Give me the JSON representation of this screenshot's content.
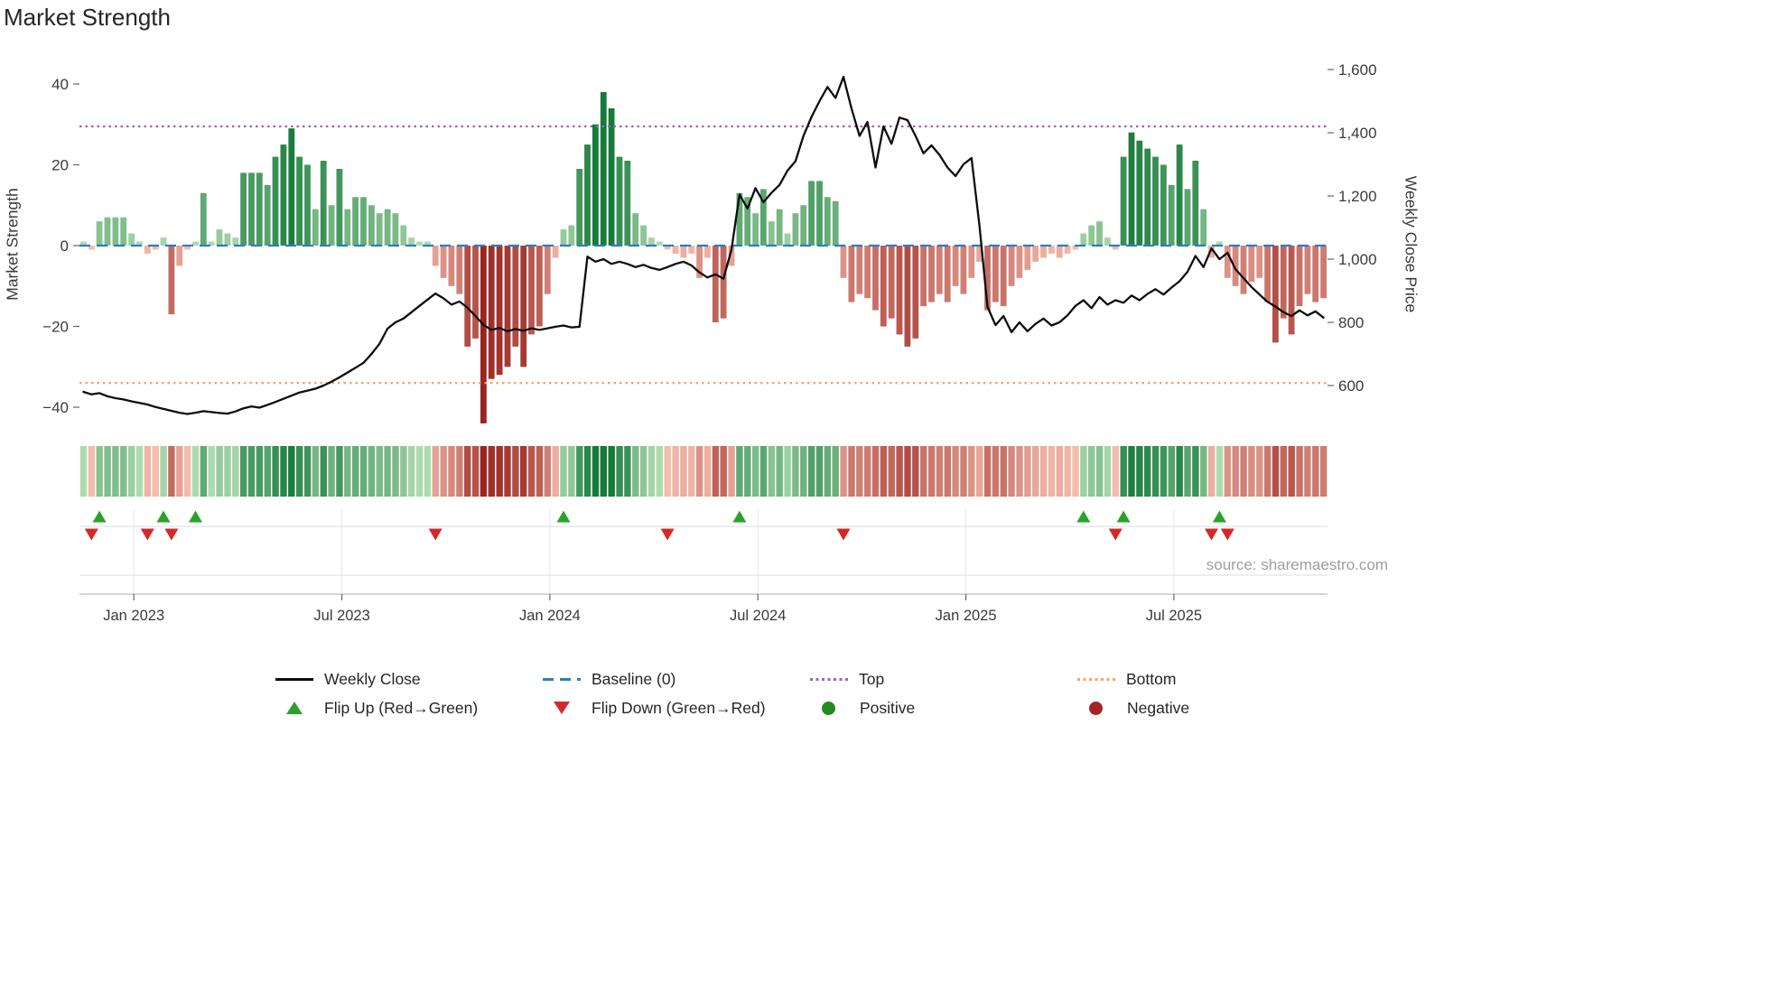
{
  "source_text": "source: sharemaestro.com",
  "colors": {
    "bar_pos_light": "#bee4bb",
    "bar_pos_dark": "#167a3a",
    "bar_neg_light": "#fac7b7",
    "bar_neg_dark": "#992522",
    "price_line": "#0d0d0d",
    "baseline": "#2e7ebb",
    "top_line": "#9467bd",
    "bottom_line": "#f5a45d",
    "flip_up": "#2ca02c",
    "flip_down": "#d62728",
    "positive_dot": "#228b22",
    "negative_dot": "#a32424",
    "grid": "#dcdcdc",
    "axis_line": "#bdbdbd",
    "tick_mark": "#666666"
  },
  "legend": {
    "rows": [
      [
        {
          "name": "weekly-close",
          "label": "Weekly Close",
          "marker": "line",
          "color": "#0d0d0d"
        },
        {
          "name": "baseline",
          "label": "Baseline (0)",
          "marker": "dashed",
          "color": "#2e7ebb"
        },
        {
          "name": "top",
          "label": "Top",
          "marker": "dotted",
          "color": "#9467bd"
        },
        {
          "name": "bottom",
          "label": "Bottom",
          "marker": "dotted",
          "color": "#f5a45d"
        }
      ],
      [
        {
          "name": "flip-up",
          "label": "Flip Up (Red→Green)",
          "marker": "tri-up",
          "color": "#2ca02c"
        },
        {
          "name": "flip-down",
          "label": "Flip Down (Green→Red)",
          "marker": "tri-down",
          "color": "#d62728"
        },
        {
          "name": "positive",
          "label": "Positive",
          "marker": "dot",
          "color": "#228b22"
        },
        {
          "name": "negative",
          "label": "Negative",
          "marker": "dot",
          "color": "#a32424"
        }
      ]
    ]
  },
  "chart_data": {
    "type": "composite",
    "title": "Market Strength",
    "x_unit": "week",
    "weeks": 156,
    "x_ticks": {
      "labels": [
        "Jan 2023",
        "Jul 2023",
        "Jan 2024",
        "Jul 2024",
        "Jan 2025",
        "Jul 2025"
      ],
      "week_positions": [
        6.3,
        32.3,
        58.3,
        84.3,
        110.3,
        136.3
      ]
    },
    "left_axis": {
      "label": "Market Strength",
      "ticks": [
        40,
        20,
        0,
        -20,
        -40
      ],
      "tick_labels": [
        "40",
        "20",
        "0",
        "−20",
        "−40"
      ],
      "range": [
        -47,
        47
      ]
    },
    "right_axis": {
      "label": "Weekly Close Price",
      "ticks": [
        1600,
        1400,
        1200,
        1000,
        800,
        600
      ],
      "tick_labels": [
        "1,600",
        "1,400",
        "1,200",
        "1,000",
        "800",
        "600"
      ],
      "range": [
        480,
        1650
      ]
    },
    "baseline": 0,
    "top_level": 29.5,
    "bottom_level": -34,
    "series": [
      {
        "name": "Market Strength",
        "type": "bar",
        "axis": "left",
        "values": [
          1,
          -1,
          6,
          7,
          7,
          7,
          3,
          1,
          -2,
          -1,
          2,
          -17,
          -5,
          -1,
          1,
          13,
          1,
          4,
          3,
          2,
          18,
          18,
          18,
          15,
          22,
          25,
          29,
          22,
          20,
          9,
          21,
          10,
          19,
          9,
          12,
          12,
          10,
          8,
          9,
          8,
          5,
          2,
          1,
          1,
          -5,
          -8,
          -10,
          -12,
          -25,
          -23,
          -44,
          -33,
          -32,
          -30,
          -25,
          -30,
          -22,
          -20,
          -12,
          -3,
          4,
          5,
          19,
          25,
          30,
          38,
          34,
          22,
          21,
          8,
          5,
          2,
          1,
          -1,
          -2,
          -3,
          -2,
          -8,
          -3,
          -19,
          -18,
          -5,
          13,
          12,
          8,
          14,
          6,
          9,
          3,
          8,
          10,
          16,
          16,
          12,
          11,
          -8,
          -14,
          -12,
          -13,
          -16,
          -20,
          -18,
          -22,
          -25,
          -23,
          -15,
          -14,
          -12,
          -14,
          -10,
          -12,
          -8,
          -4,
          -16,
          -14,
          -15,
          -10,
          -8,
          -6,
          -4,
          -3,
          -2,
          -3,
          -2,
          -1,
          3,
          5,
          6,
          2,
          -1,
          22,
          28,
          26,
          24,
          22,
          20,
          15,
          25,
          14,
          21,
          9,
          -3,
          1,
          -8,
          -10,
          -12,
          -9,
          -8,
          -14,
          -24,
          -18,
          -22,
          -15,
          -12,
          -14,
          -13
        ]
      },
      {
        "name": "Weekly Close",
        "type": "line",
        "axis": "right",
        "values": [
          580,
          572,
          576,
          566,
          560,
          556,
          550,
          545,
          540,
          532,
          526,
          520,
          514,
          510,
          514,
          519,
          516,
          513,
          511,
          518,
          528,
          534,
          530,
          539,
          548,
          558,
          568,
          578,
          584,
          590,
          600,
          612,
          626,
          641,
          656,
          672,
          700,
          732,
          780,
          800,
          812,
          832,
          852,
          872,
          891,
          876,
          856,
          866,
          846,
          820,
          792,
          776,
          782,
          772,
          779,
          773,
          781,
          776,
          781,
          786,
          790,
          784,
          786,
          1008,
          992,
          1000,
          985,
          992,
          985,
          975,
          982,
          972,
          966,
          975,
          985,
          992,
          980,
          958,
          942,
          952,
          938,
          1030,
          1205,
          1160,
          1225,
          1180,
          1210,
          1235,
          1280,
          1310,
          1390,
          1450,
          1500,
          1545,
          1510,
          1577,
          1477,
          1390,
          1434,
          1290,
          1420,
          1365,
          1448,
          1440,
          1390,
          1335,
          1360,
          1330,
          1290,
          1263,
          1300,
          1320,
          1106,
          849,
          791,
          820,
          769,
          800,
          772,
          795,
          812,
          790,
          800,
          822,
          852,
          870,
          845,
          880,
          856,
          870,
          862,
          885,
          870,
          890,
          905,
          888,
          910,
          930,
          960,
          1010,
          975,
          1034,
          1000,
          1020,
          968,
          940,
          912,
          888,
          865,
          850,
          832,
          820,
          838,
          822,
          835,
          815
        ]
      }
    ],
    "flip_up_weeks": [
      2,
      10,
      14,
      60,
      82,
      125,
      130,
      142
    ],
    "flip_down_weeks": [
      1,
      8,
      11,
      44,
      73,
      95,
      129,
      141,
      143
    ]
  }
}
